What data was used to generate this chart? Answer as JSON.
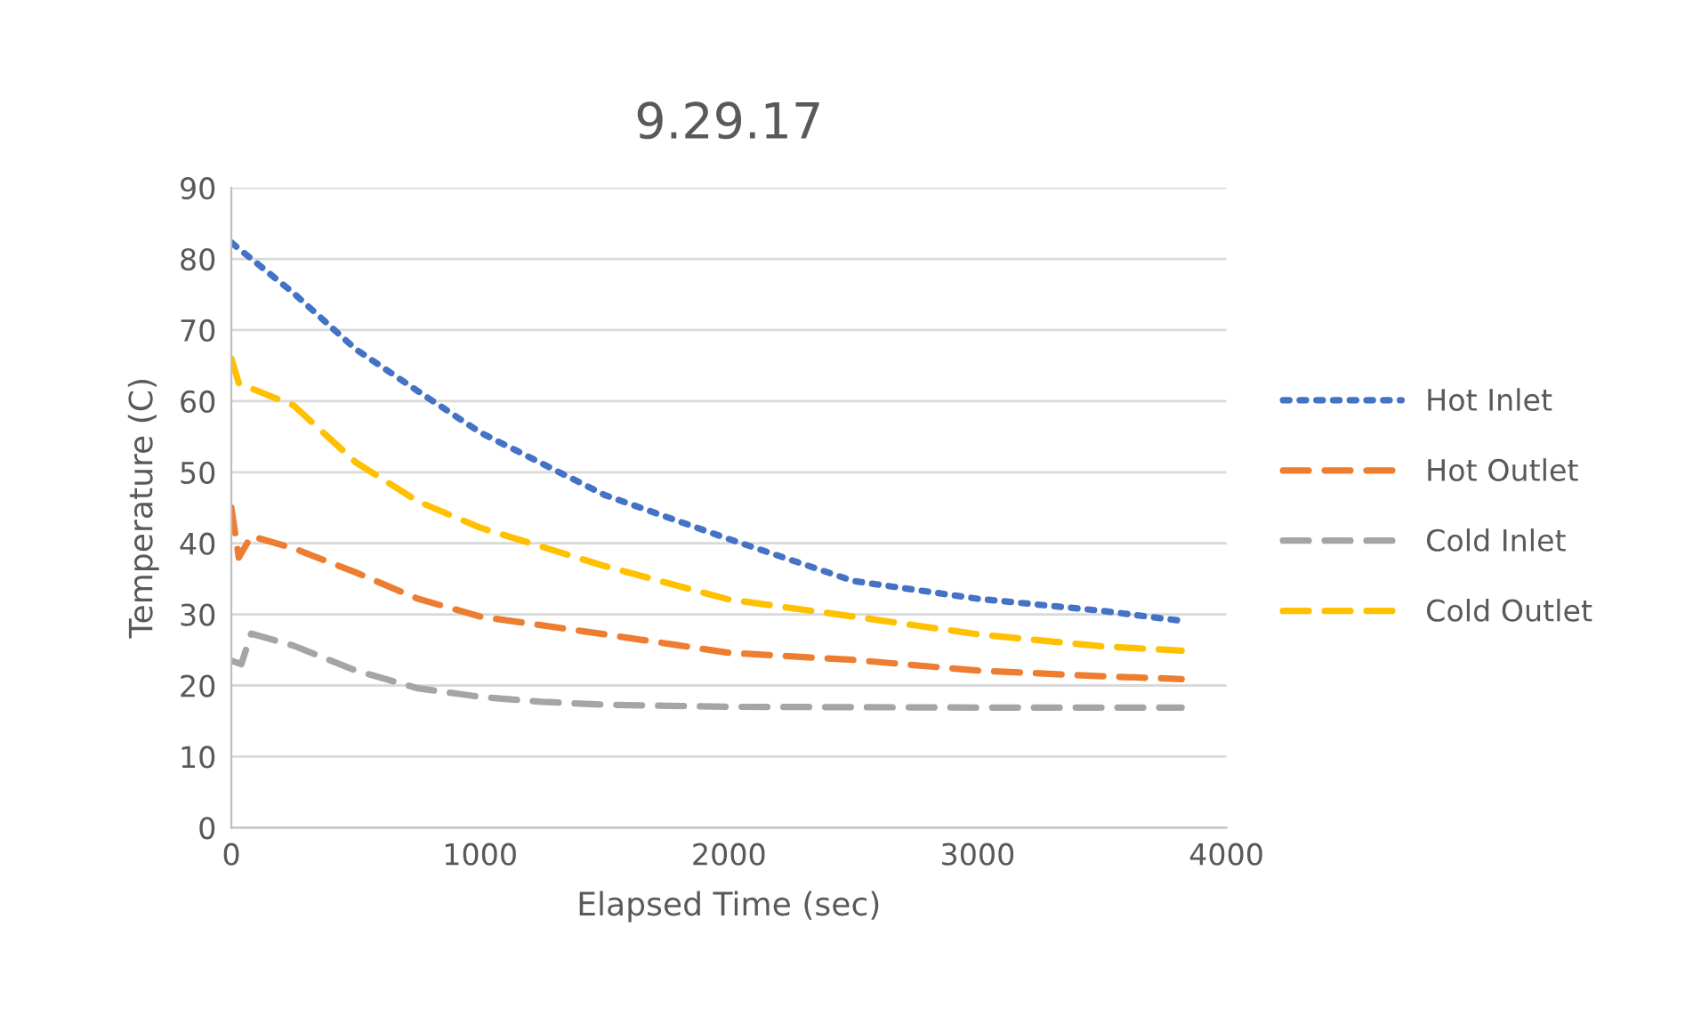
{
  "chart_data": {
    "type": "line",
    "title": "9.29.17",
    "xlabel": "Elapsed Time (sec)",
    "ylabel": "Temperature (C)",
    "xlim": [
      0,
      4000
    ],
    "xticks": [
      0,
      1000,
      2000,
      3000,
      4000
    ],
    "ylim": [
      0,
      90
    ],
    "yticks": [
      0,
      10,
      20,
      30,
      40,
      50,
      60,
      70,
      80,
      90
    ],
    "grid": "y",
    "legend": "right",
    "marker": "none",
    "series": [
      {
        "name": "Hot Inlet",
        "color": "#4472c4",
        "line_style": "dotted",
        "x": [
          0,
          250,
          500,
          750,
          1000,
          1500,
          2000,
          2500,
          3000,
          3500,
          3820
        ],
        "values": [
          82.3,
          75.2,
          67.3,
          61.4,
          55.6,
          46.8,
          40.6,
          34.7,
          32.2,
          30.5,
          29.1
        ]
      },
      {
        "name": "Hot Outlet",
        "color": "#ed7d31",
        "line_style": "dashed",
        "x": [
          0,
          30,
          80,
          250,
          500,
          750,
          1000,
          1500,
          2000,
          2500,
          3000,
          3500,
          3820
        ],
        "values": [
          45,
          38,
          41,
          39.3,
          35.9,
          32.2,
          29.7,
          27.2,
          24.6,
          23.6,
          22.1,
          21.3,
          20.9
        ]
      },
      {
        "name": "Cold Inlet",
        "color": "#a5a5a5",
        "line_style": "dashed",
        "x": [
          0,
          40,
          80,
          250,
          500,
          750,
          1000,
          1250,
          1500,
          2000,
          3000,
          3820
        ],
        "values": [
          23.5,
          23,
          27.3,
          25.6,
          22.1,
          19.6,
          18.4,
          17.7,
          17.3,
          17.0,
          16.9,
          16.9
        ]
      },
      {
        "name": "Cold Outlet",
        "color": "#ffc000",
        "line_style": "dashed",
        "x": [
          0,
          30,
          250,
          500,
          750,
          1000,
          1500,
          2000,
          2500,
          3000,
          3500,
          3820
        ],
        "values": [
          66,
          62.5,
          59.4,
          51.4,
          45.9,
          42.2,
          36.8,
          32.1,
          29.7,
          27.2,
          25.5,
          24.9
        ]
      }
    ]
  }
}
